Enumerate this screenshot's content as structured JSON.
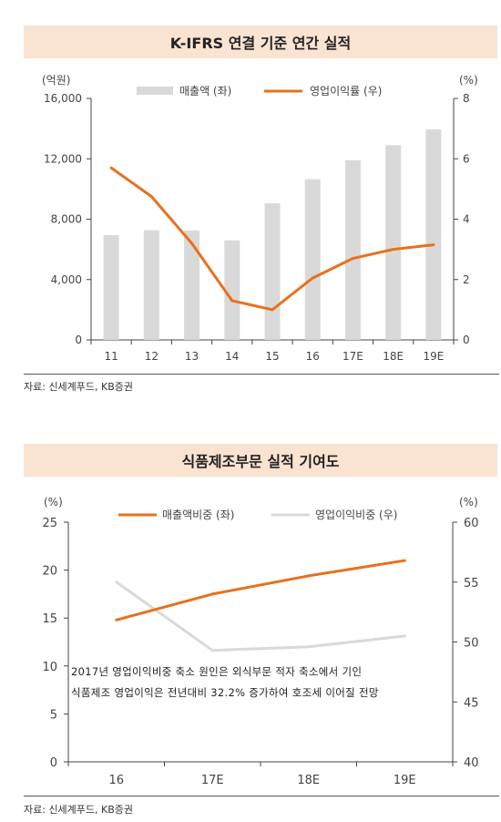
{
  "charts": [
    {
      "title": "K-IFRS 연결 기준 연간 실적",
      "source": "자료: 신세계푸드, KB증권",
      "left_unit": "(억원)",
      "right_unit": "(%)",
      "legend": [
        "매출액 (좌)",
        "영업이익률 (우)"
      ]
    },
    {
      "title": "식품제조부문 실적 기여도",
      "source": "자료: 신세계푸드, KB증권",
      "left_unit": "(%)",
      "right_unit": "(%)",
      "legend": [
        "매출액비중 (좌)",
        "영업이익비중 (우)"
      ],
      "note_lines": [
        "2017년 영업이익비중 축소 원인은 외식부문 적자 축소에서 기인",
        "식품제조 영업이익은 전년대비 32.2% 증가하여 호조세 이어질 전망"
      ]
    }
  ],
  "chart_data": [
    {
      "type": "bar+line",
      "categories": [
        "11",
        "12",
        "13",
        "14",
        "15",
        "16",
        "17E",
        "18E",
        "19E"
      ],
      "series": [
        {
          "name": "매출액 (좌)",
          "type": "bar",
          "axis": "left",
          "values": [
            6950,
            7270,
            7250,
            6600,
            9050,
            10650,
            11900,
            12900,
            13950
          ],
          "color": "#d9d9d9"
        },
        {
          "name": "영업이익률 (우)",
          "type": "line",
          "axis": "right",
          "values": [
            5.7,
            4.75,
            3.2,
            1.3,
            1.0,
            2.05,
            2.7,
            3.0,
            3.15
          ],
          "color": "#e8701d"
        }
      ],
      "left_axis": {
        "min": 0,
        "max": 16000,
        "ticks": [
          "0",
          "4,000",
          "8,000",
          "12,000",
          "16,000"
        ]
      },
      "right_axis": {
        "min": 0,
        "max": 8,
        "ticks": [
          "0",
          "2",
          "4",
          "6",
          "8"
        ]
      },
      "grid": false,
      "legend_position": "top"
    },
    {
      "type": "line",
      "categories": [
        "16",
        "17E",
        "18E",
        "19E"
      ],
      "series": [
        {
          "name": "매출액비중 (좌)",
          "axis": "left",
          "values": [
            14.8,
            17.5,
            19.4,
            21.0
          ],
          "color": "#e8701d"
        },
        {
          "name": "영업이익비중 (우)",
          "axis": "right",
          "values": [
            55.0,
            49.3,
            49.6,
            50.5
          ],
          "color": "#d9d9d9"
        }
      ],
      "left_axis": {
        "min": 0,
        "max": 25,
        "ticks": [
          "0",
          "5",
          "10",
          "15",
          "20",
          "25"
        ]
      },
      "right_axis": {
        "min": 40,
        "max": 60,
        "ticks": [
          "40",
          "45",
          "50",
          "55",
          "60"
        ]
      },
      "grid": false,
      "legend_position": "top"
    }
  ]
}
